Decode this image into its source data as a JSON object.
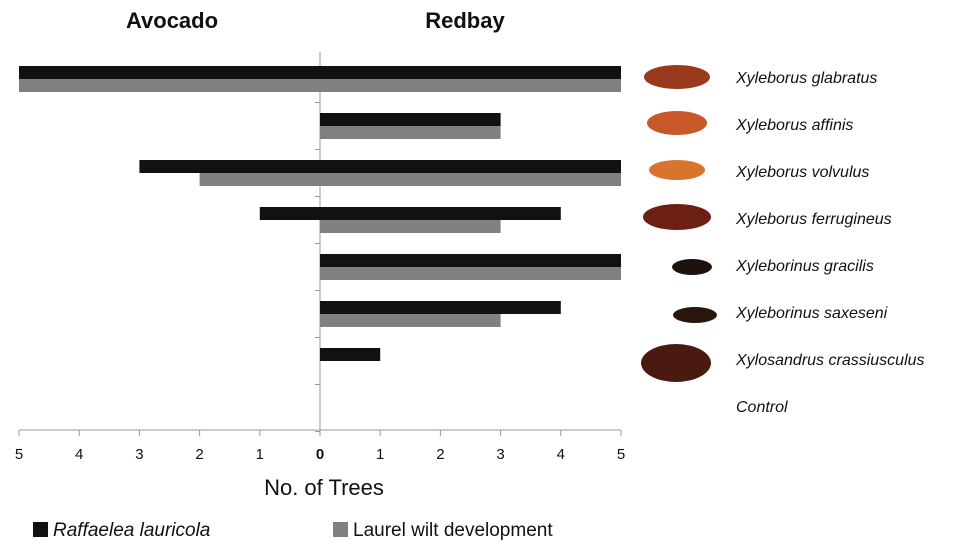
{
  "chart_data": {
    "type": "butterfly",
    "panels": [
      "Avocado",
      "Redbay"
    ],
    "categories": [
      "Xyleborus glabratus",
      "Xyleborus affinis",
      "Xyleborus volvulus",
      "Xyleborus ferrugineus",
      "Xyleborinus  gracilis",
      "Xyleborinus saxeseni",
      "Xylosandrus crassiusculus",
      "Control"
    ],
    "series": [
      {
        "name": "Raffaelea lauricola",
        "color": "#111111",
        "values": [
          [
            5,
            0,
            3,
            1,
            0,
            0,
            0,
            0
          ],
          [
            5,
            3,
            5,
            4,
            5,
            4,
            1,
            0
          ]
        ]
      },
      {
        "name": "Laurel wilt development",
        "color": "#808080",
        "values": [
          [
            5,
            0,
            2,
            0,
            0,
            0,
            0,
            0
          ],
          [
            5,
            3,
            5,
            3,
            5,
            3,
            0,
            0
          ]
        ]
      }
    ],
    "xlim": [
      0,
      5
    ],
    "xticks": [
      0,
      1,
      2,
      3,
      4,
      5
    ],
    "xlabel": "No. of Trees"
  }
}
